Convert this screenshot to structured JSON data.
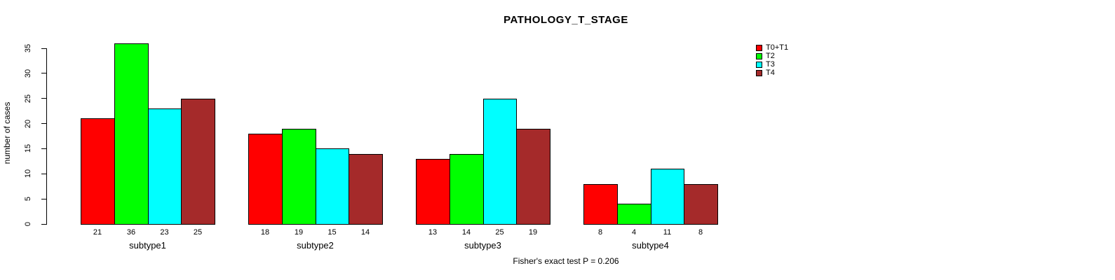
{
  "chart_data": {
    "type": "bar",
    "title": "PATHOLOGY_T_STAGE",
    "ylabel": "number of cases",
    "xlabel": "",
    "categories": [
      "subtype1",
      "subtype2",
      "subtype3",
      "subtype4"
    ],
    "series": [
      {
        "name": "T0+T1",
        "color": "#ff0000",
        "values": [
          21,
          18,
          13,
          8
        ]
      },
      {
        "name": "T2",
        "color": "#00ff00",
        "values": [
          36,
          19,
          14,
          4
        ]
      },
      {
        "name": "T3",
        "color": "#00ffff",
        "values": [
          23,
          15,
          25,
          11
        ]
      },
      {
        "name": "T4",
        "color": "#a52a2a",
        "values": [
          25,
          14,
          19,
          8
        ]
      }
    ],
    "ylim": [
      0,
      35
    ],
    "yticks": [
      0,
      5,
      10,
      15,
      20,
      25,
      30,
      35
    ],
    "grid": false,
    "legend_position": "top-right",
    "bar_value_labels": true,
    "annotation": "Fisher's exact test P = 0.206",
    "axis_color": "#000000",
    "background_color": "#ffffff"
  }
}
